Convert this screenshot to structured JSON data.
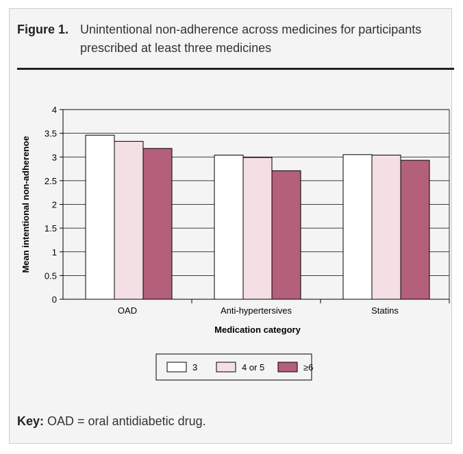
{
  "caption": {
    "label": "Figure 1.",
    "text": "Unintentional non-adherence across medicines for participants prescribed at least three medicines"
  },
  "key_note": {
    "label": "Key:",
    "text": "OAD = oral antidiabetic drug."
  },
  "colors": {
    "background": "#f4f4f4",
    "series": [
      "#ffffff",
      "#f3dfe4",
      "#b4607b"
    ],
    "axis": "#000000"
  },
  "chart_data": {
    "type": "bar",
    "title": "",
    "xlabel": "Medication category",
    "ylabel": "Mean intentional non-adherenoe",
    "categories": [
      "OAD",
      "Anti-hypertersives",
      "Statins"
    ],
    "ylim": [
      0,
      4
    ],
    "yticks": [
      "0",
      "0.5",
      "1",
      "1.5",
      "2",
      "2.5",
      "3",
      "3.5",
      "4"
    ],
    "grid": true,
    "legend_position": "bottom-center",
    "series": [
      {
        "name": "3",
        "values": [
          3.46,
          3.04,
          3.05
        ]
      },
      {
        "name": "4 or 5",
        "values": [
          3.33,
          2.99,
          3.04
        ]
      },
      {
        "name": "≥6",
        "values": [
          3.18,
          2.71,
          2.93
        ]
      }
    ]
  }
}
